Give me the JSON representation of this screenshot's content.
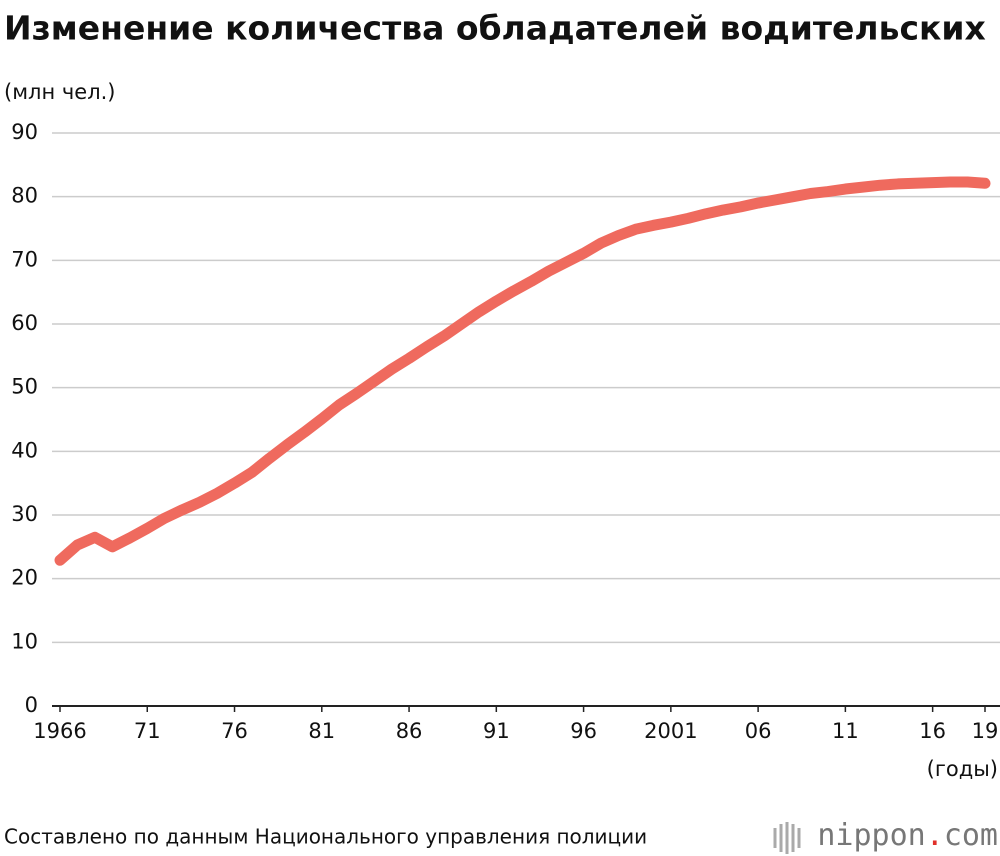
{
  "chart_data": {
    "type": "line",
    "title": "Изменение количества обладателей водительских прав",
    "y_label": "(млн чел.)",
    "x_label": "(годы)",
    "source": "Составлено по данным Национального управления полиции",
    "logo": [
      "nippon",
      ".",
      "com"
    ],
    "x": [
      1966,
      1967,
      1968,
      1969,
      1970,
      1971,
      1972,
      1973,
      1974,
      1975,
      1976,
      1977,
      1978,
      1979,
      1980,
      1981,
      1982,
      1983,
      1984,
      1985,
      1986,
      1987,
      1988,
      1989,
      1990,
      1991,
      1992,
      1993,
      1994,
      1995,
      1996,
      1997,
      1998,
      1999,
      2000,
      2001,
      2002,
      2003,
      2004,
      2005,
      2006,
      2007,
      2008,
      2009,
      2010,
      2011,
      2012,
      2013,
      2014,
      2015,
      2016,
      2017,
      2018,
      2019
    ],
    "values": [
      22.9,
      25.3,
      26.5,
      25.0,
      26.4,
      27.9,
      29.5,
      30.8,
      32.0,
      33.4,
      35.0,
      36.7,
      38.9,
      41.0,
      43.0,
      45.1,
      47.3,
      49.1,
      51.0,
      52.9,
      54.6,
      56.4,
      58.1,
      60.0,
      61.9,
      63.6,
      65.2,
      66.7,
      68.3,
      69.7,
      71.1,
      72.7,
      73.9,
      74.9,
      75.5,
      76.0,
      76.6,
      77.3,
      77.9,
      78.4,
      79.0,
      79.5,
      80.0,
      80.5,
      80.8,
      81.2,
      81.5,
      81.8,
      82.0,
      82.1,
      82.2,
      82.3,
      82.3,
      82.1
    ],
    "color": "#ef6a5e",
    "xlim": [
      1966,
      2019
    ],
    "xticks": [
      1966,
      {
        "value": 1971,
        "label": "71"
      },
      {
        "value": 1976,
        "label": "76"
      },
      {
        "value": 1981,
        "label": "81"
      },
      {
        "value": 1986,
        "label": "86"
      },
      {
        "value": 1991,
        "label": "91"
      },
      {
        "value": 1996,
        "label": "96"
      },
      2001,
      {
        "value": 2006,
        "label": "06"
      },
      {
        "value": 2011,
        "label": "11"
      },
      {
        "value": 2016,
        "label": "16"
      },
      {
        "value": 2019,
        "label": "19"
      }
    ],
    "ylim": [
      0,
      90
    ],
    "yticks": [
      0,
      10,
      20,
      30,
      40,
      50,
      60,
      70,
      80,
      90
    ],
    "grid": true
  }
}
